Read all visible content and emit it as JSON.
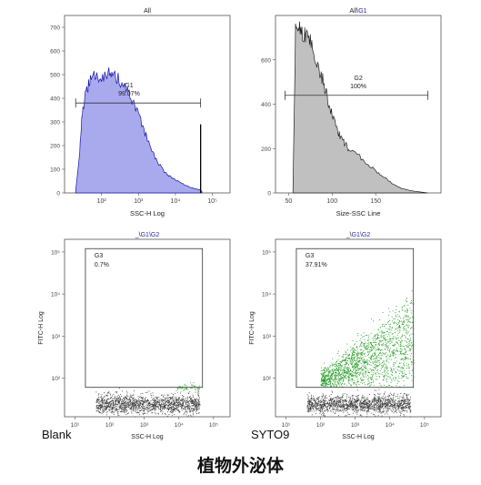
{
  "footer_title": "植物外泌体",
  "chart_data": [
    {
      "type": "area",
      "title": "All",
      "xlabel": "SSC-H   Log",
      "ylabel": "",
      "x_scale": "log",
      "x_ticks": [
        {
          "v": 100,
          "t": "10²"
        },
        {
          "v": 1000,
          "t": "10³"
        },
        {
          "v": 10000,
          "t": "10⁴"
        },
        {
          "v": 100000,
          "t": "10⁵"
        }
      ],
      "y_ticks": [
        0,
        100,
        200,
        300,
        400,
        500,
        600,
        700
      ],
      "xlim": [
        10,
        300000
      ],
      "ylim": [
        0,
        750
      ],
      "fill": "#a9a9ee",
      "stroke": "#1616a8",
      "x": [
        20,
        25,
        30,
        40,
        50,
        70,
        100,
        150,
        200,
        300,
        500,
        700,
        1000,
        1500,
        2000,
        3000,
        5000,
        7000,
        10000,
        15000,
        20000,
        30000,
        40000,
        48000,
        52000
      ],
      "y": [
        10,
        150,
        340,
        440,
        470,
        500,
        495,
        505,
        490,
        480,
        430,
        380,
        330,
        250,
        200,
        140,
        90,
        70,
        55,
        40,
        30,
        20,
        15,
        12,
        5
      ],
      "spike": {
        "x": 48000,
        "y": 290
      },
      "gate": {
        "name": "G1",
        "value": "99.07%",
        "range": [
          20,
          48000
        ],
        "level": 380
      }
    },
    {
      "type": "area",
      "title": "All\\G1",
      "title_plain": "All\\",
      "title_gate": "G1",
      "xlabel": "Size-SSC   Line",
      "ylabel": "",
      "x_scale": "linear",
      "x_ticks": [
        {
          "v": 50,
          "t": "50"
        },
        {
          "v": 100,
          "t": "100"
        },
        {
          "v": 150,
          "t": "150"
        }
      ],
      "y_ticks": [
        0,
        200,
        400,
        600
      ],
      "xlim": [
        35,
        225
      ],
      "ylim": [
        0,
        800
      ],
      "fill": "#c0c0c0",
      "stroke": "#222222",
      "x": [
        55,
        58,
        62,
        66,
        70,
        75,
        80,
        85,
        90,
        95,
        100,
        105,
        110,
        115,
        120,
        130,
        140,
        150,
        160,
        170,
        180,
        190,
        200,
        210
      ],
      "y": [
        0,
        720,
        760,
        720,
        700,
        680,
        620,
        560,
        500,
        420,
        350,
        290,
        250,
        220,
        190,
        170,
        130,
        100,
        70,
        40,
        20,
        10,
        5,
        0
      ],
      "gate": {
        "name": "G2",
        "value": "100%",
        "range": [
          46,
          210
        ],
        "level": 440
      }
    },
    {
      "type": "scatter",
      "title": "_\\G1\\G2",
      "title_plain": "_\\",
      "title_gate": "G1\\G2",
      "xlabel": "SSC-H   Log",
      "ylabel": "FITC-H      Log",
      "x_scale": "log",
      "y_scale": "log",
      "x_ticks": [
        {
          "v": 10,
          "t": "10¹"
        },
        {
          "v": 100,
          "t": "10²"
        },
        {
          "v": 1000,
          "t": "10³"
        },
        {
          "v": 10000,
          "t": "10⁴"
        },
        {
          "v": 100000,
          "t": "10⁵"
        }
      ],
      "y_ticks": [
        {
          "v": 100,
          "t": "10²"
        },
        {
          "v": 1000,
          "t": "10³"
        },
        {
          "v": 10000,
          "t": "10⁴"
        },
        {
          "v": 100000,
          "t": "10⁵"
        }
      ],
      "xlim": [
        5,
        300000
      ],
      "ylim": [
        12,
        200000
      ],
      "clouds": [
        {
          "n": 1500,
          "xlog": [
            1.6,
            4.6
          ],
          "ylog_center": 1.38,
          "ylog_spread": 0.11,
          "color": "#3a3a3a"
        },
        {
          "n": 60,
          "xlog": [
            3.9,
            4.6
          ],
          "ylog_center": 1.78,
          "ylog_spread": 0.05,
          "color": "#2d9e2d"
        }
      ],
      "gate": {
        "name": "G3",
        "value": "0.7%",
        "x": [
          20,
          48000
        ],
        "y": [
          60,
          120000
        ]
      }
    },
    {
      "type": "scatter",
      "title": "_\\G1\\G2",
      "title_plain": "_\\",
      "title_gate": "G1\\G2",
      "xlabel": "SSC-H   Log",
      "ylabel": "FITC-H      Log",
      "x_scale": "log",
      "y_scale": "log",
      "x_ticks": [
        {
          "v": 10,
          "t": "10¹"
        },
        {
          "v": 100,
          "t": "10²"
        },
        {
          "v": 1000,
          "t": "10³"
        },
        {
          "v": 10000,
          "t": "10⁴"
        },
        {
          "v": 100000,
          "t": "10⁵"
        }
      ],
      "y_ticks": [
        {
          "v": 100,
          "t": "10²"
        },
        {
          "v": 1000,
          "t": "10³"
        },
        {
          "v": 10000,
          "t": "10⁴"
        },
        {
          "v": 100000,
          "t": "10⁵"
        }
      ],
      "xlim": [
        5,
        300000
      ],
      "ylim": [
        12,
        200000
      ],
      "clouds": [
        {
          "n": 1500,
          "xlog": [
            1.6,
            4.6
          ],
          "ylog_center": 1.38,
          "ylog_spread": 0.11,
          "color": "#3a3a3a"
        },
        {
          "n": 1700,
          "xlog": [
            2.0,
            4.68
          ],
          "ylog_center": 1.95,
          "ylog_spread": 0.3,
          "slope": 0.9,
          "color": "#1f9a1f"
        }
      ],
      "gate": {
        "name": "G3",
        "value": "37.91%",
        "x": [
          20,
          48000
        ],
        "y": [
          60,
          120000
        ]
      }
    }
  ],
  "captions": {
    "left": "Blank",
    "right": "SYTO9"
  }
}
